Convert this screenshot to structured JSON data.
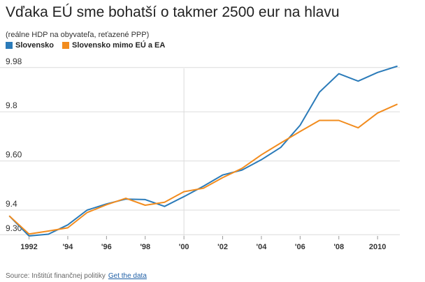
{
  "header": {
    "title": "Vďaka EÚ sme bohatší o takmer 2500 eur na hlavu",
    "subtitle": "(reálne HDP na obyvateľa, reťazené PPP)"
  },
  "footer": {
    "source": "Source: Inštitút finančnej politiky",
    "link": "Get the data"
  },
  "chart_data": {
    "type": "line",
    "x": [
      1991,
      1992,
      1993,
      1994,
      1995,
      1996,
      1997,
      1998,
      1999,
      2000,
      2001,
      2002,
      2003,
      2004,
      2005,
      2006,
      2007,
      2008,
      2009,
      2010,
      2011
    ],
    "x_tick_labels": [
      {
        "value": 1992,
        "label": "1992"
      },
      {
        "value": 1994,
        "label": "'94"
      },
      {
        "value": 1996,
        "label": "'96"
      },
      {
        "value": 1998,
        "label": "'98"
      },
      {
        "value": 2000,
        "label": "'00"
      },
      {
        "value": 2002,
        "label": "'02"
      },
      {
        "value": 2004,
        "label": "'04"
      },
      {
        "value": 2006,
        "label": "'06"
      },
      {
        "value": 2008,
        "label": "'08"
      },
      {
        "value": 2010,
        "label": "2010"
      }
    ],
    "y_tick_labels": [
      {
        "value": 9.3,
        "label": "9.30"
      },
      {
        "value": 9.4,
        "label": "9.4"
      },
      {
        "value": 9.6,
        "label": "9.60"
      },
      {
        "value": 9.8,
        "label": "9.8"
      },
      {
        "value": 9.98,
        "label": "9.98"
      }
    ],
    "ylim": [
      9.295,
      10.005
    ],
    "xlim": [
      1990.5,
      2011.15
    ],
    "grid": true,
    "legend_position": "top-left",
    "series": [
      {
        "name": "Slovensko",
        "color": "#2b7bb9",
        "values": [
          9.375,
          9.295,
          9.302,
          9.34,
          9.4,
          9.425,
          9.445,
          9.443,
          9.415,
          9.455,
          9.497,
          9.543,
          9.563,
          9.605,
          9.655,
          9.745,
          9.88,
          9.955,
          9.925,
          9.96,
          9.985
        ]
      },
      {
        "name": "Slovensko mimo EÚ a EA",
        "color": "#f28c1e",
        "values": [
          9.375,
          9.303,
          9.315,
          9.328,
          9.39,
          9.422,
          9.448,
          9.42,
          9.432,
          9.475,
          9.489,
          9.532,
          9.57,
          9.625,
          9.673,
          9.72,
          9.765,
          9.765,
          9.735,
          9.795,
          9.83
        ]
      }
    ]
  }
}
